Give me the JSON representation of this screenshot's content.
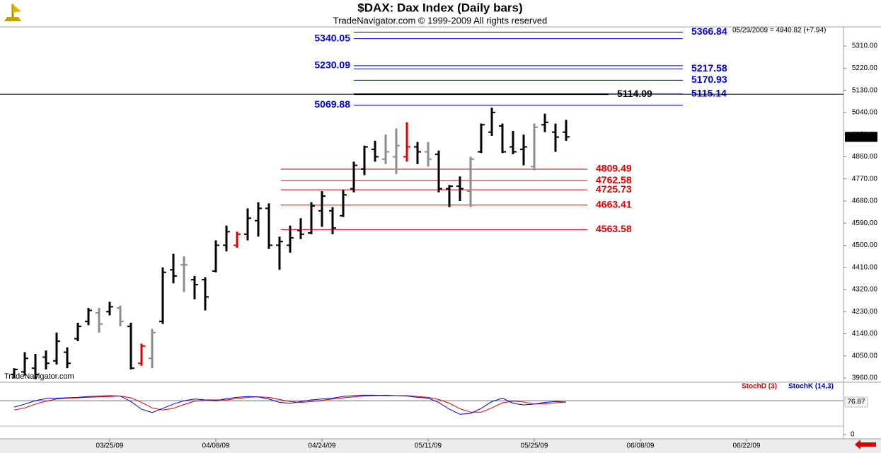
{
  "chart_data": [
    {
      "type": "ohlc",
      "title": "$DAX:  Dax Index  (Daily bars)",
      "subtitle": "TradeNavigator.com © 1999-2009 All rights reserved",
      "info": "05/29/2009 = 4940.82 (+7.94)",
      "watermark": "TradeNavigator.com",
      "categories": [
        null,
        null,
        null,
        null,
        null,
        null,
        null,
        null,
        null,
        "03/25/09",
        null,
        null,
        null,
        null,
        null,
        null,
        null,
        null,
        null,
        "04/08/09",
        null,
        null,
        null,
        null,
        null,
        null,
        null,
        null,
        null,
        "04/24/09",
        null,
        null,
        null,
        null,
        null,
        null,
        null,
        null,
        null,
        "05/11/09",
        null,
        null,
        null,
        null,
        null,
        null,
        null,
        null,
        null,
        "05/25/09",
        null,
        null,
        null,
        null,
        null,
        null,
        null,
        null,
        null,
        "06/08/09",
        null,
        null,
        null,
        null,
        null,
        null,
        null,
        null,
        null,
        "06/22/09"
      ],
      "open": [
        3975,
        3985,
        4000,
        4045,
        4030,
        4065,
        4120,
        4190,
        4225,
        4230,
        4245,
        4170,
        4020,
        4040,
        4190,
        4400,
        4420,
        4360,
        4360,
        4395,
        4500,
        4500,
        4545,
        4600,
        4650,
        4500,
        4500,
        4560,
        4550,
        4640,
        4640,
        4620,
        4730,
        4810,
        4890,
        4850,
        4860,
        4860,
        4900,
        4880,
        4870,
        4730,
        4740,
        4720,
        4880,
        4960,
        4985,
        4900,
        4890,
        4820,
        4990,
        4960,
        4960,
        null,
        null,
        null,
        null,
        null,
        null,
        null,
        null,
        null,
        null,
        null,
        null,
        null,
        null,
        null,
        null,
        null
      ],
      "high": [
        4000,
        4065,
        4058,
        4072,
        4145,
        4085,
        4185,
        4245,
        4245,
        4270,
        4255,
        4185,
        4100,
        4160,
        4410,
        4465,
        4455,
        4375,
        4370,
        4520,
        4580,
        4555,
        4650,
        4675,
        4670,
        4535,
        4580,
        4610,
        4675,
        4720,
        4655,
        4725,
        4840,
        4905,
        4925,
        4950,
        4975,
        5000,
        4920,
        4920,
        4885,
        4745,
        4780,
        4860,
        4995,
        5060,
        4995,
        4965,
        4950,
        4995,
        5035,
        4995,
        5010,
        null,
        null,
        null,
        null,
        null,
        null,
        null,
        null,
        null,
        null,
        null,
        null,
        null,
        null,
        null,
        null,
        null
      ],
      "low": [
        3960,
        3970,
        3955,
        3995,
        4015,
        4000,
        4110,
        4175,
        4145,
        4215,
        4170,
        3995,
        4010,
        4000,
        4180,
        4345,
        4310,
        4280,
        4235,
        4390,
        4475,
        4490,
        4520,
        4535,
        4485,
        4400,
        4470,
        4525,
        4545,
        4575,
        4545,
        4615,
        4715,
        4785,
        4840,
        4830,
        4790,
        4840,
        4830,
        4820,
        4715,
        4655,
        4680,
        4655,
        4875,
        4945,
        4875,
        4870,
        4825,
        4805,
        4960,
        4880,
        4925,
        null,
        null,
        null,
        null,
        null,
        null,
        null,
        null,
        null,
        null,
        null,
        null,
        null,
        null,
        null,
        null,
        null
      ],
      "close": [
        3995,
        4040,
        3975,
        4020,
        4110,
        4020,
        4170,
        4235,
        4180,
        4250,
        4190,
        4000,
        4090,
        4145,
        4390,
        4375,
        4420,
        4340,
        4290,
        4500,
        4555,
        4545,
        4610,
        4650,
        4500,
        4515,
        4530,
        4545,
        4660,
        4700,
        4570,
        4705,
        4825,
        4900,
        4860,
        4880,
        4905,
        4900,
        4880,
        4850,
        4730,
        4740,
        4730,
        4850,
        4990,
        5040,
        4880,
        4880,
        4900,
        4980,
        5000,
        4940,
        4940.82,
        null,
        null,
        null,
        null,
        null,
        null,
        null,
        null,
        null,
        null,
        null,
        null,
        null,
        null,
        null,
        null,
        null
      ],
      "colors": [
        "#000000",
        "#000000",
        "#000000",
        "#000000",
        "#000000",
        "#000000",
        "#000000",
        "#000000",
        "#8c8c8c",
        "#000000",
        "#8c8c8c",
        "#000000",
        "#e00000",
        "#8c8c8c",
        "#000000",
        "#000000",
        "#8c8c8c",
        "#000000",
        "#000000",
        "#000000",
        "#000000",
        "#e00000",
        "#000000",
        "#000000",
        "#000000",
        "#000000",
        "#000000",
        "#000000",
        "#000000",
        "#000000",
        "#000000",
        "#000000",
        "#000000",
        "#000000",
        "#000000",
        "#8c8c8c",
        "#8c8c8c",
        "#e00000",
        "#000000",
        "#8c8c8c",
        "#000000",
        "#000000",
        "#000000",
        "#8c8c8c",
        "#000000",
        "#000000",
        "#000000",
        "#000000",
        "#000000",
        "#8c8c8c",
        "#000000",
        "#000000",
        "#000000",
        null,
        null,
        null,
        null,
        null,
        null,
        null,
        null,
        null,
        null,
        null,
        null,
        null,
        null,
        null,
        null,
        null
      ],
      "ylim": [
        3943,
        5388
      ],
      "yticks": [
        {
          "value": 3960,
          "label": "3960.00"
        },
        {
          "value": 4050,
          "label": "4050.00"
        },
        {
          "value": 4140,
          "label": "4140.00"
        },
        {
          "value": 4230,
          "label": "4230.00"
        },
        {
          "value": 4320,
          "label": "4320.00"
        },
        {
          "value": 4410,
          "label": "4410.00"
        },
        {
          "value": 4500,
          "label": "4500.00"
        },
        {
          "value": 4590,
          "label": "4590.00"
        },
        {
          "value": 4680,
          "label": "4680.00"
        },
        {
          "value": 4770,
          "label": "4770.00"
        },
        {
          "value": 4860,
          "label": "4860.00"
        },
        {
          "value": 4950,
          "label": "4950.00"
        },
        {
          "value": 5040,
          "label": "5040.00"
        },
        {
          "value": 5130,
          "label": "5130.00"
        },
        {
          "value": 5220,
          "label": "5220.00"
        },
        {
          "value": 5310,
          "label": "5310.00"
        }
      ],
      "levels": [
        {
          "value": 5366.84,
          "color": "#0000dd",
          "label_side": "right"
        },
        {
          "value": 5340.05,
          "color": "#0000dd",
          "label_side": "left"
        },
        {
          "value": 5230.09,
          "color": "#0000dd",
          "label_side": "left"
        },
        {
          "value": 5217.58,
          "color": "#0000dd",
          "label_side": "right"
        },
        {
          "value": 5170.93,
          "color": "#0000dd",
          "label_side": "right"
        },
        {
          "value": 5115.14,
          "color": "#0000dd",
          "label_side": "right"
        },
        {
          "value": 5114.09,
          "color": "#000000",
          "label_side": "right"
        },
        {
          "value": 5069.88,
          "color": "#0000dd",
          "label_side": "left"
        },
        {
          "value": 4809.49,
          "color": "#dd0000",
          "label_side": "right"
        },
        {
          "value": 4762.58,
          "color": "#dd0000",
          "label_side": "right"
        },
        {
          "value": 4725.73,
          "color": "#dd0000",
          "label_side": "right"
        },
        {
          "value": 4663.41,
          "color": "#dd0000",
          "label_side": "right"
        },
        {
          "value": 4563.58,
          "color": "#dd0000",
          "label_side": "right"
        }
      ]
    },
    {
      "type": "line",
      "series": [
        {
          "name": "StochD (3)",
          "color": "#dd0000",
          "values": [
            58,
            63,
            72,
            79,
            84,
            86,
            87,
            88,
            89,
            90,
            91,
            87,
            76,
            63,
            58,
            62,
            71,
            79,
            82,
            82,
            82,
            85,
            88,
            89,
            88,
            83,
            78,
            76,
            78,
            81,
            84,
            87,
            89,
            91,
            92,
            93,
            92,
            92,
            90,
            88,
            83,
            74,
            61,
            53,
            53,
            63,
            75,
            79,
            77,
            72,
            73,
            75,
            77,
            null,
            null,
            null,
            null,
            null,
            null,
            null,
            null,
            null,
            null,
            null,
            null,
            null,
            null,
            null,
            null,
            null
          ]
        },
        {
          "name": "StochK (14,3)",
          "color": "#0000cc",
          "values": [
            65,
            72,
            80,
            85,
            86,
            87,
            88,
            90,
            91,
            92,
            91,
            78,
            60,
            52,
            62,
            72,
            80,
            84,
            82,
            80,
            85,
            88,
            90,
            89,
            84,
            76,
            74,
            78,
            82,
            84,
            86,
            90,
            92,
            93,
            93,
            92,
            92,
            91,
            88,
            86,
            76,
            60,
            48,
            50,
            62,
            78,
            86,
            74,
            70,
            72,
            76,
            78,
            76.87,
            null,
            null,
            null,
            null,
            null,
            null,
            null,
            null,
            null,
            null,
            null,
            null,
            null,
            null,
            null,
            null,
            null
          ]
        }
      ],
      "ylim": [
        -23.4,
        123.7
      ],
      "yticks": [
        0
      ],
      "levels": [
        {
          "value": 80,
          "color": "#707070"
        },
        {
          "value": 20,
          "color": "#b0b0b0"
        }
      ]
    }
  ]
}
